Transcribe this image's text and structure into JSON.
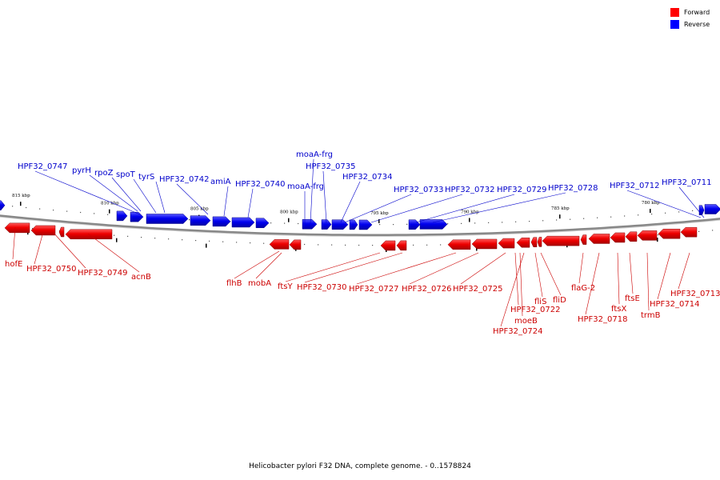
{
  "legend": {
    "forward_label": "Forward",
    "reverse_label": "Reverse",
    "forward_color": "#ff0000",
    "reverse_color": "#0000ff"
  },
  "caption": "Helicobacter pylori F32 DNA, complete genome. - 0..1578824",
  "scale_unit": "kbp",
  "scale_ticks": [
    "815 kbp",
    "810 kbp",
    "805 kbp",
    "800 kbp",
    "795 kbp",
    "790 kbp",
    "785 kbp",
    "780 kbp"
  ],
  "reverse_genes": [
    "HPF32_0747",
    "pyrH",
    "rpoZ",
    "spoT",
    "tyrS",
    "HPF32_0742",
    "amiA",
    "HPF32_0740",
    "moaA-frg",
    "moaA-frg",
    "HPF32_0735",
    "HPF32_0734",
    "HPF32_0733",
    "HPF32_0732",
    "HPF32_0729",
    "HPF32_0728",
    "HPF32_0712",
    "HPF32_0711"
  ],
  "forward_genes": [
    "hofE",
    "HPF32_0750",
    "HPF32_0749",
    "acnB",
    "flhB",
    "mobA",
    "ftsY",
    "HPF32_0730",
    "HPF32_0727",
    "HPF32_0726",
    "HPF32_0725",
    "HPF32_0722",
    "moeB",
    "HPF32_0724",
    "fliS",
    "fliD",
    "flaG-2",
    "HPF32_0718",
    "ftsX",
    "ftsE",
    "trmB",
    "HPF32_0714",
    "HPF32_0713"
  ]
}
